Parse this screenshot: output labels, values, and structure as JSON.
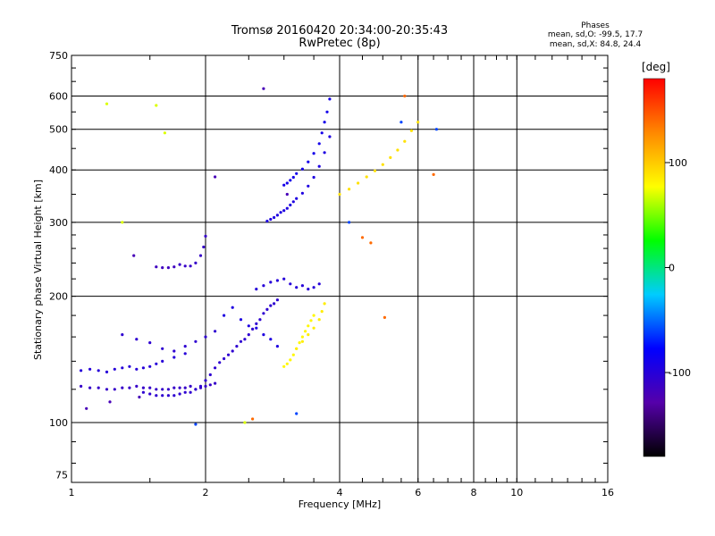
{
  "chart_data": {
    "type": "scatter",
    "title": "Tromsø 20160420 20:34:00-20:35:43",
    "subtitle": "RwPretec (8p)",
    "xlabel": "Frequency [MHz]",
    "ylabel": "Stationary phase Virtual Height [km]",
    "x_scale": "log",
    "y_scale": "log",
    "xlim": [
      1,
      16
    ],
    "ylim": [
      72,
      750
    ],
    "x_ticks": [
      "1",
      "2",
      "4",
      "6",
      "8",
      "10",
      "16"
    ],
    "y_ticks": [
      "750",
      "600",
      "500",
      "400",
      "300",
      "200",
      "100",
      "75"
    ],
    "grid": true,
    "colorbar": {
      "label": "[deg]",
      "range": [
        -180,
        180
      ],
      "ticks": [
        "100",
        "0",
        "-100"
      ],
      "colors": [
        "#000000",
        "#5500aa",
        "#0000ff",
        "#00ccff",
        "#00ff00",
        "#ffff00",
        "#ff8800",
        "#ff0000"
      ]
    },
    "stats": {
      "heading": "Phases",
      "o_mode": "mean, sd,O: -99.5, 17.7",
      "x_mode": "mean, sd,X:  84.8, 24.4"
    },
    "series": [
      {
        "phase": -110,
        "x": [
          1.05,
          1.1,
          1.15,
          1.2,
          1.25,
          1.3,
          1.35,
          1.4,
          1.45,
          1.5,
          1.55,
          1.6,
          1.65,
          1.7,
          1.75,
          1.8,
          1.85,
          1.9,
          1.95,
          2.0,
          2.05,
          2.1
        ],
        "y": [
          122,
          121,
          121,
          120,
          120,
          121,
          121,
          122,
          121,
          121,
          120,
          120,
          120,
          121,
          121,
          121,
          122,
          120,
          121,
          122,
          123,
          124
        ]
      },
      {
        "phase": -105,
        "x": [
          1.45,
          1.5,
          1.55,
          1.6,
          1.65,
          1.7,
          1.75,
          1.8,
          1.85,
          1.9,
          1.95,
          2.0,
          2.05,
          2.1,
          2.15,
          2.2,
          2.25,
          2.3,
          2.35,
          2.4,
          2.45,
          2.5,
          2.55,
          2.6,
          2.65,
          2.7,
          2.75,
          2.8,
          2.85,
          2.9
        ],
        "y": [
          118,
          117,
          116,
          116,
          116,
          116,
          117,
          118,
          118,
          120,
          122,
          126,
          130,
          135,
          139,
          142,
          145,
          148,
          152,
          156,
          158,
          162,
          167,
          172,
          176,
          182,
          186,
          190,
          192,
          196
        ]
      },
      {
        "phase": -100,
        "x": [
          1.05,
          1.1,
          1.15,
          1.2,
          1.25,
          1.3,
          1.35,
          1.4,
          1.45,
          1.5,
          1.55,
          1.6,
          1.7,
          1.8
        ],
        "y": [
          133,
          134,
          133,
          132,
          134,
          135,
          136,
          134,
          135,
          136,
          138,
          140,
          143,
          146
        ]
      },
      {
        "phase": -95,
        "x": [
          2.75,
          2.8,
          2.85,
          2.9,
          2.95,
          3.0,
          3.05,
          3.1,
          3.15,
          3.2,
          3.3,
          3.4,
          3.5,
          3.6,
          3.7,
          3.8
        ],
        "y": [
          302,
          305,
          308,
          312,
          317,
          320,
          324,
          330,
          336,
          342,
          352,
          366,
          384,
          408,
          440,
          480
        ]
      },
      {
        "phase": -90,
        "x": [
          3.0,
          3.05,
          3.1,
          3.15,
          3.2,
          3.3,
          3.4,
          3.5,
          3.6,
          3.65,
          3.7,
          3.75,
          3.8
        ],
        "y": [
          368,
          372,
          378,
          384,
          392,
          402,
          418,
          438,
          462,
          490,
          520,
          550,
          590
        ]
      },
      {
        "phase": -100,
        "x": [
          2.6,
          2.7,
          2.8,
          2.9,
          3.0,
          3.1,
          3.2,
          3.3,
          3.4,
          3.5,
          3.6
        ],
        "y": [
          208,
          212,
          216,
          218,
          220,
          214,
          210,
          212,
          208,
          210,
          214
        ]
      },
      {
        "phase": -95,
        "x": [
          2.2,
          2.3,
          2.4,
          2.5,
          2.6,
          2.7,
          2.8,
          2.9
        ],
        "y": [
          180,
          188,
          176,
          170,
          168,
          162,
          158,
          152
        ]
      },
      {
        "phase": -105,
        "x": [
          1.3,
          1.4,
          1.5,
          1.6,
          1.7,
          1.8,
          1.9,
          2.0,
          2.1
        ],
        "y": [
          162,
          158,
          155,
          150,
          148,
          152,
          156,
          160,
          165
        ]
      },
      {
        "phase": -110,
        "x": [
          1.75,
          1.8,
          1.85,
          1.9,
          1.95,
          1.98,
          2.0
        ],
        "y": [
          238,
          236,
          236,
          240,
          250,
          262,
          278
        ]
      },
      {
        "phase": -115,
        "x": [
          1.55,
          1.6,
          1.65,
          1.7
        ],
        "y": [
          235,
          234,
          234,
          235
        ]
      },
      {
        "phase": 80,
        "x": [
          3.0,
          3.05,
          3.1,
          3.15,
          3.2,
          3.25,
          3.3,
          3.35,
          3.4,
          3.45,
          3.5
        ],
        "y": [
          136,
          138,
          141,
          145,
          150,
          155,
          160,
          165,
          170,
          175,
          180
        ]
      },
      {
        "phase": 85,
        "x": [
          3.2,
          3.3,
          3.4,
          3.5,
          3.6,
          3.65,
          3.7
        ],
        "y": [
          150,
          156,
          162,
          168,
          176,
          184,
          192
        ]
      },
      {
        "phase": 90,
        "x": [
          4.0,
          4.2,
          4.4,
          4.6,
          4.8,
          5.0,
          5.2,
          5.4,
          5.6,
          5.8,
          6.0
        ],
        "y": [
          350,
          360,
          372,
          385,
          398,
          412,
          428,
          446,
          468,
          496,
          520
        ]
      },
      {
        "phase": 70,
        "x": [
          1.2,
          1.55,
          1.62,
          1.3,
          2.45
        ],
        "y": [
          575,
          570,
          490,
          300,
          100
        ]
      },
      {
        "phase": 140,
        "x": [
          2.55,
          4.5,
          4.7,
          5.05,
          5.6,
          6.5
        ],
        "y": [
          102,
          276,
          268,
          178,
          600,
          390
        ]
      },
      {
        "phase": -60,
        "x": [
          3.2,
          4.2,
          5.5,
          6.6,
          1.9
        ],
        "y": [
          105,
          300,
          520,
          500,
          99
        ]
      },
      {
        "phase": -120,
        "x": [
          1.08,
          1.22,
          1.42,
          1.38,
          2.1,
          2.7,
          3.05
        ],
        "y": [
          108,
          112,
          115,
          250,
          385,
          625,
          350
        ]
      }
    ]
  }
}
